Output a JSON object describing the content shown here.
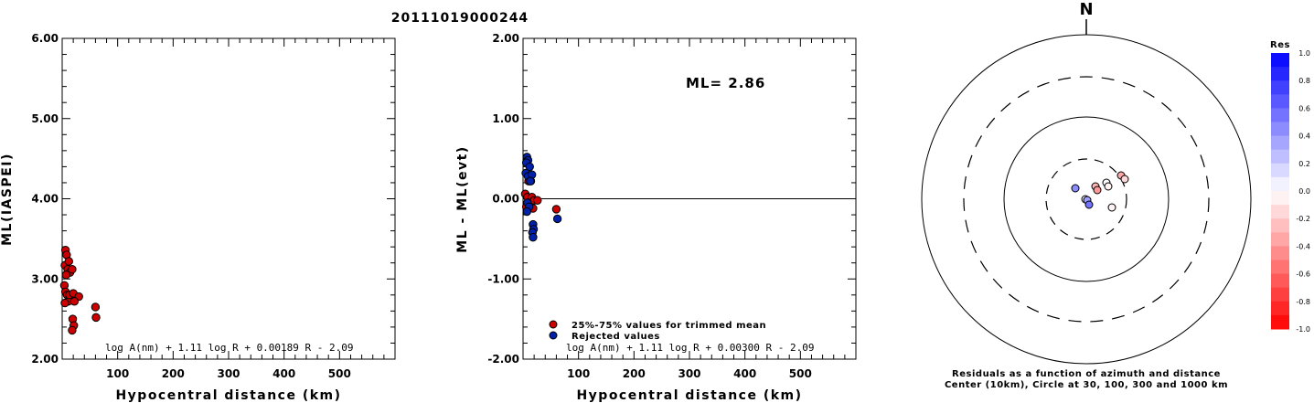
{
  "title": "20111019000244",
  "chart_data": [
    {
      "type": "scatter",
      "xlabel": "Hypocentral distance (km)",
      "ylabel": "ML(IASPEI)",
      "xlim": [
        0,
        600
      ],
      "ylim": [
        2.0,
        6.0
      ],
      "xticks": [
        "100",
        "200",
        "300",
        "400",
        "500"
      ],
      "yticks": [
        "2.00",
        "3.00",
        "4.00",
        "5.00",
        "6.00"
      ],
      "formula": "log A(nm) + 1.11 log R + 0.00189 R - 2.09",
      "series": [
        {
          "color": "#cc0000",
          "points": [
            [
              6,
              3.36
            ],
            [
              8,
              3.3
            ],
            [
              5,
              3.17
            ],
            [
              10,
              3.12
            ],
            [
              12,
              3.22
            ],
            [
              14,
              3.08
            ],
            [
              18,
              3.12
            ],
            [
              7,
              3.05
            ],
            [
              4,
              2.92
            ],
            [
              6,
              2.84
            ],
            [
              9,
              2.8
            ],
            [
              11,
              2.72
            ],
            [
              5,
              2.7
            ],
            [
              13,
              2.8
            ],
            [
              20,
              2.82
            ],
            [
              30,
              2.78
            ],
            [
              22,
              2.72
            ],
            [
              19,
              2.5
            ],
            [
              21,
              2.42
            ],
            [
              18,
              2.36
            ],
            [
              60,
              2.65
            ],
            [
              61,
              2.52
            ]
          ]
        }
      ]
    },
    {
      "type": "scatter",
      "xlabel": "Hypocentral distance (km)",
      "ylabel": "ML - ML(evt)",
      "xlim": [
        0,
        600
      ],
      "ylim": [
        -2.0,
        2.0
      ],
      "xticks": [
        "100",
        "200",
        "300",
        "400",
        "500"
      ],
      "yticks": [
        "-2.00",
        "-1.00",
        "0.00",
        "1.00",
        "2.00"
      ],
      "annotation": "ML= 2.86",
      "formula": "log A(nm) + 1.11 log R + 0.00300 R - 2.09",
      "legend": [
        {
          "label": "25%-75% values for trimmed mean",
          "color": "#cc0000"
        },
        {
          "label": "Rejected values",
          "color": "#0022aa"
        }
      ],
      "series": [
        {
          "name": "25%-75% values for trimmed mean",
          "color": "#cc0000",
          "points": [
            [
              10,
              0.22
            ],
            [
              14,
              0.22
            ],
            [
              4,
              0.06
            ],
            [
              8,
              0.02
            ],
            [
              12,
              -0.04
            ],
            [
              16,
              0.02
            ],
            [
              20,
              -0.02
            ],
            [
              26,
              -0.02
            ],
            [
              6,
              -0.1
            ],
            [
              18,
              -0.12
            ],
            [
              60,
              -0.13
            ]
          ]
        },
        {
          "name": "Rejected values",
          "color": "#0022aa",
          "points": [
            [
              7,
              0.52
            ],
            [
              9,
              0.48
            ],
            [
              6,
              0.45
            ],
            [
              12,
              0.4
            ],
            [
              5,
              0.32
            ],
            [
              9,
              0.28
            ],
            [
              16,
              0.3
            ],
            [
              13,
              0.22
            ],
            [
              8,
              -0.05
            ],
            [
              11,
              -0.1
            ],
            [
              7,
              -0.16
            ],
            [
              18,
              -0.32
            ],
            [
              19,
              -0.38
            ],
            [
              17,
              -0.42
            ],
            [
              18,
              -0.48
            ],
            [
              62,
              -0.25
            ]
          ]
        }
      ]
    },
    {
      "type": "scatter",
      "title": "N",
      "caption_line1": "Residuals as a function of azimuth and distance",
      "caption_line2": "Center (10km), Circle at 30, 100, 300 and 1000 km",
      "colorbar_title": "Res",
      "colorbar_ticks": [
        "1.0",
        "0.8",
        "0.6",
        "0.4",
        "0.2",
        "0.0",
        "-0.2",
        "-0.4",
        "-0.6",
        "-0.8",
        "-1.0"
      ],
      "points_dx_dy_km": [
        {
          "dx": -12,
          "dy": 12,
          "res": 0.45
        },
        {
          "dx": 10,
          "dy": 14,
          "res": -0.3
        },
        {
          "dx": 12,
          "dy": 10,
          "res": -0.4
        },
        {
          "dx": 22,
          "dy": 18,
          "res": 0.02
        },
        {
          "dx": 24,
          "dy": 14,
          "res": -0.05
        },
        {
          "dx": 38,
          "dy": 26,
          "res": -0.35
        },
        {
          "dx": 42,
          "dy": 22,
          "res": -0.15
        },
        {
          "dx": -1,
          "dy": 0,
          "res": 0.05
        },
        {
          "dx": 1,
          "dy": -1,
          "res": 0.38
        },
        {
          "dx": 3,
          "dy": -6,
          "res": 0.55
        },
        {
          "dx": 28,
          "dy": -9,
          "res": -0.05
        }
      ]
    }
  ]
}
